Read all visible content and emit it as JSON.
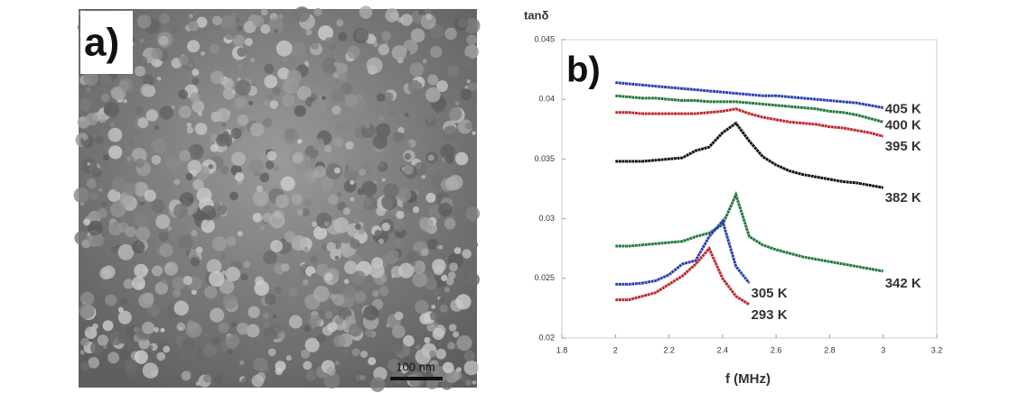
{
  "image_panel": {
    "label": "a)",
    "scale_bar": "100 nm"
  },
  "chart_data": {
    "type": "line",
    "panel_label": "b)",
    "y_label": "tanδ",
    "x_label": "f (MHz)",
    "x": [
      2.0,
      2.05,
      2.1,
      2.15,
      2.2,
      2.25,
      2.3,
      2.35,
      2.4,
      2.45,
      2.5,
      2.55,
      2.6,
      2.65,
      2.7,
      2.75,
      2.8,
      2.85,
      2.9,
      2.95,
      3.0
    ],
    "xlim": [
      1.8,
      3.2
    ],
    "xticks": [
      1.8,
      2,
      2.2,
      2.4,
      2.6,
      2.8,
      3,
      3.2
    ],
    "ylim": [
      0.02,
      0.045
    ],
    "yticks": [
      0.02,
      0.025,
      0.03,
      0.035,
      0.04,
      0.045
    ],
    "series": [
      {
        "name": "405 K",
        "color": "#2b3fb5",
        "values": [
          0.0414,
          0.0413,
          0.0412,
          0.0411,
          0.041,
          0.0409,
          0.0408,
          0.0407,
          0.0406,
          0.0405,
          0.0404,
          0.0403,
          0.0403,
          0.0402,
          0.0401,
          0.04,
          0.0399,
          0.0398,
          0.0397,
          0.0395,
          0.0393
        ]
      },
      {
        "name": "400 K",
        "color": "#1f7a3a",
        "values": [
          0.0403,
          0.0402,
          0.0401,
          0.0401,
          0.04,
          0.0399,
          0.0399,
          0.0398,
          0.0398,
          0.0398,
          0.0397,
          0.0396,
          0.0395,
          0.0394,
          0.0393,
          0.0392,
          0.039,
          0.0389,
          0.0387,
          0.0384,
          0.0381
        ]
      },
      {
        "name": "395 K",
        "color": "#c0282e",
        "values": [
          0.0389,
          0.0389,
          0.0388,
          0.0388,
          0.0388,
          0.0388,
          0.0388,
          0.0389,
          0.039,
          0.0392,
          0.0388,
          0.0385,
          0.0383,
          0.0381,
          0.038,
          0.0379,
          0.0377,
          0.0376,
          0.0374,
          0.0372,
          0.0369
        ]
      },
      {
        "name": "382 K",
        "color": "#111111",
        "values": [
          0.0348,
          0.0348,
          0.0348,
          0.0349,
          0.035,
          0.0351,
          0.0357,
          0.036,
          0.0372,
          0.038,
          0.0365,
          0.0352,
          0.0345,
          0.034,
          0.0337,
          0.0335,
          0.0333,
          0.0331,
          0.033,
          0.0328,
          0.0326
        ]
      },
      {
        "name": "342 K",
        "color": "#1f7a3a",
        "values": [
          0.0277,
          0.0277,
          0.0278,
          0.0279,
          0.028,
          0.0281,
          0.0285,
          0.0288,
          0.0295,
          0.032,
          0.0285,
          0.0278,
          0.0274,
          0.0271,
          0.0268,
          0.0266,
          0.0264,
          0.0262,
          0.026,
          0.0258,
          0.0256
        ]
      },
      {
        "name": "305 K",
        "color": "#2b3fb5",
        "values": [
          0.0245,
          0.0245,
          0.0246,
          0.0248,
          0.0253,
          0.0262,
          0.0265,
          0.0285,
          0.0298,
          0.026,
          0.0246,
          null,
          null,
          null,
          null,
          null,
          null,
          null,
          null,
          null,
          null
        ]
      },
      {
        "name": "293 K",
        "color": "#c0282e",
        "values": [
          0.0232,
          0.0232,
          0.0235,
          0.0238,
          0.0245,
          0.0252,
          0.0262,
          0.0275,
          0.025,
          0.0235,
          0.0228,
          null,
          null,
          null,
          null,
          null,
          null,
          null,
          null,
          null,
          null
        ]
      }
    ]
  }
}
